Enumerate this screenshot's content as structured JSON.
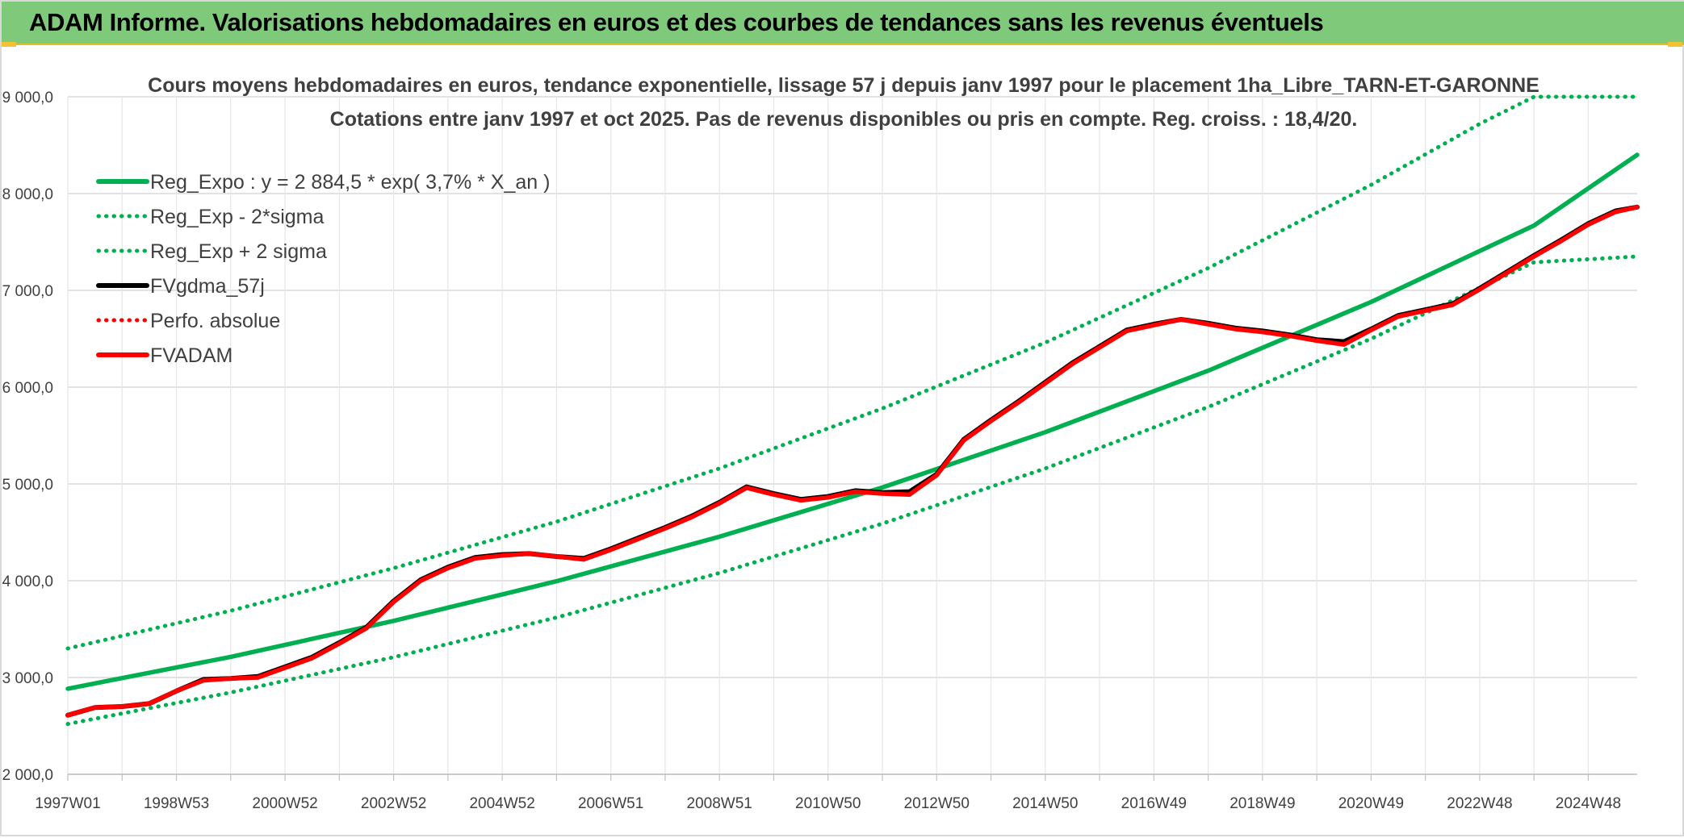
{
  "banner": {
    "title": "ADAM Informe. Valorisations hebdomadaires en euros et des courbes de tendances sans les revenus éventuels"
  },
  "chart_data": {
    "type": "line",
    "title": "Cours moyens hebdomadaires en euros, tendance exponentielle, lissage 57 j depuis janv 1997 pour le placement 1ha_Libre_TARN-ET-GARONNE",
    "subtitle": "Cotations entre janv 1997 et oct 2025. Pas de revenus disponibles ou pris en compte. Reg. croiss. : 18,4/20.",
    "xlabel": "",
    "ylabel": "",
    "xlim": [
      1997.0,
      2025.9
    ],
    "ylim": [
      2000,
      9000
    ],
    "y_ticks": [
      2000,
      3000,
      4000,
      5000,
      6000,
      7000,
      8000,
      9000
    ],
    "y_tick_labels": [
      "2 000,0",
      "3 000,0",
      "4 000,0",
      "5 000,0",
      "6 000,0",
      "7 000,0",
      "8 000,0",
      "9 000,0"
    ],
    "x_ticks": [
      {
        "label": "1997W01",
        "t": 1997.0
      },
      {
        "label": "1998W53",
        "t": 1999.0
      },
      {
        "label": "2000W52",
        "t": 2001.0
      },
      {
        "label": "2002W52",
        "t": 2003.0
      },
      {
        "label": "2004W52",
        "t": 2005.0
      },
      {
        "label": "2006W51",
        "t": 2007.0
      },
      {
        "label": "2008W51",
        "t": 2009.0
      },
      {
        "label": "2010W50",
        "t": 2011.0
      },
      {
        "label": "2012W50",
        "t": 2013.0
      },
      {
        "label": "2014W50",
        "t": 2015.0
      },
      {
        "label": "2016W49",
        "t": 2017.0
      },
      {
        "label": "2018W49",
        "t": 2019.0
      },
      {
        "label": "2020W49",
        "t": 2021.0
      },
      {
        "label": "2022W48",
        "t": 2023.0
      },
      {
        "label": "2024W48",
        "t": 2025.0
      }
    ],
    "grid": true,
    "legend_position": "top-left",
    "series": [
      {
        "name": "Reg_Expo : y = 2 884,5 * exp( 3,7% *  X_an )",
        "color": "#00b050",
        "style": "solid",
        "x": [
          1997.0,
          2000.0,
          2003.0,
          2006.0,
          2009.0,
          2012.0,
          2015.0,
          2018.0,
          2021.0,
          2024.0,
          2025.9
        ],
        "y": [
          2884.5,
          3213,
          3585,
          3995,
          4455,
          4963,
          5535,
          6170,
          6880,
          7670,
          8400
        ]
      },
      {
        "name": "Reg_Exp - 2*sigma",
        "color": "#00b050",
        "style": "dotted",
        "x": [
          1997.0,
          2000.0,
          2003.0,
          2006.0,
          2009.0,
          2012.0,
          2015.0,
          2018.0,
          2021.0,
          2024.0,
          2025.9
        ],
        "y": [
          2520,
          2845,
          3210,
          3620,
          4080,
          4590,
          5160,
          5795,
          6500,
          7290,
          7350
        ]
      },
      {
        "name": "Reg_Exp + 2 sigma",
        "color": "#00b050",
        "style": "dotted",
        "x": [
          1997.0,
          2000.0,
          2003.0,
          2006.0,
          2009.0,
          2012.0,
          2015.0,
          2018.0,
          2021.0,
          2023.0,
          2024.0,
          2025.9
        ],
        "y": [
          3300,
          3690,
          4130,
          4610,
          5160,
          5780,
          6460,
          7230,
          8090,
          8720,
          9000,
          9000
        ]
      },
      {
        "name": "FVgdma_57j",
        "color": "#000000",
        "style": "solid",
        "x": [
          1997.0,
          1997.5,
          1998.0,
          1998.5,
          1999.0,
          1999.5,
          2000.0,
          2000.5,
          2001.0,
          2001.5,
          2002.0,
          2002.5,
          2003.0,
          2003.5,
          2004.0,
          2004.5,
          2005.0,
          2005.5,
          2006.0,
          2006.5,
          2007.0,
          2007.5,
          2008.0,
          2008.5,
          2009.0,
          2009.5,
          2010.0,
          2010.5,
          2011.0,
          2011.5,
          2012.0,
          2012.5,
          2013.0,
          2013.5,
          2014.0,
          2014.5,
          2015.0,
          2015.5,
          2016.0,
          2016.5,
          2017.0,
          2017.5,
          2018.0,
          2018.5,
          2019.0,
          2019.5,
          2020.0,
          2020.5,
          2021.0,
          2021.5,
          2022.0,
          2022.5,
          2023.0,
          2023.5,
          2024.0,
          2024.5,
          2025.0,
          2025.5,
          2025.9
        ],
        "y": [
          2610,
          2690,
          2700,
          2730,
          2860,
          2980,
          2990,
          3010,
          3110,
          3210,
          3360,
          3520,
          3790,
          4010,
          4140,
          4240,
          4270,
          4280,
          4250,
          4230,
          4330,
          4440,
          4550,
          4670,
          4810,
          4970,
          4900,
          4840,
          4870,
          4930,
          4910,
          4920,
          5100,
          5460,
          5660,
          5850,
          6050,
          6250,
          6420,
          6590,
          6650,
          6700,
          6660,
          6610,
          6580,
          6540,
          6490,
          6470,
          6600,
          6740,
          6800,
          6860,
          7020,
          7190,
          7360,
          7520,
          7690,
          7820,
          7860
        ]
      },
      {
        "name": "Perfo. absolue",
        "color": "#ff0000",
        "style": "dotted",
        "x": [],
        "y": []
      },
      {
        "name": "FVADAM",
        "color": "#ff0000",
        "style": "solid",
        "x": [
          1997.0,
          1997.5,
          1998.0,
          1998.5,
          1999.0,
          1999.5,
          2000.0,
          2000.5,
          2001.0,
          2001.5,
          2002.0,
          2002.5,
          2003.0,
          2003.5,
          2004.0,
          2004.5,
          2005.0,
          2005.5,
          2006.0,
          2006.5,
          2007.0,
          2007.5,
          2008.0,
          2008.5,
          2009.0,
          2009.5,
          2010.0,
          2010.5,
          2011.0,
          2011.5,
          2012.0,
          2012.5,
          2013.0,
          2013.5,
          2014.0,
          2014.5,
          2015.0,
          2015.5,
          2016.0,
          2016.5,
          2017.0,
          2017.5,
          2018.0,
          2018.5,
          2019.0,
          2019.5,
          2020.0,
          2020.5,
          2021.0,
          2021.5,
          2022.0,
          2022.5,
          2023.0,
          2023.5,
          2024.0,
          2024.5,
          2025.0,
          2025.5,
          2025.9
        ],
        "y": [
          2610,
          2690,
          2700,
          2730,
          2860,
          2970,
          2990,
          3000,
          3100,
          3200,
          3350,
          3510,
          3780,
          4000,
          4130,
          4230,
          4260,
          4280,
          4250,
          4220,
          4320,
          4430,
          4540,
          4660,
          4800,
          4960,
          4890,
          4830,
          4860,
          4920,
          4900,
          4890,
          5090,
          5450,
          5650,
          5840,
          6040,
          6240,
          6410,
          6580,
          6640,
          6700,
          6650,
          6600,
          6570,
          6530,
          6480,
          6440,
          6590,
          6730,
          6790,
          6850,
          7010,
          7180,
          7350,
          7510,
          7680,
          7810,
          7860
        ]
      }
    ]
  },
  "legend": {
    "items": [
      {
        "label": "Reg_Expo : y = 2 884,5 * exp( 3,7% *  X_an )",
        "color": "#00b050",
        "style": "solid"
      },
      {
        "label": "Reg_Exp - 2*sigma",
        "color": "#00b050",
        "style": "dotted"
      },
      {
        "label": "Reg_Exp + 2 sigma",
        "color": "#00b050",
        "style": "dotted"
      },
      {
        "label": "FVgdma_57j",
        "color": "#000000",
        "style": "solid"
      },
      {
        "label": "Perfo. absolue",
        "color": "#ff0000",
        "style": "dotted"
      },
      {
        "label": "FVADAM",
        "color": "#ff0000",
        "style": "solid"
      }
    ]
  }
}
